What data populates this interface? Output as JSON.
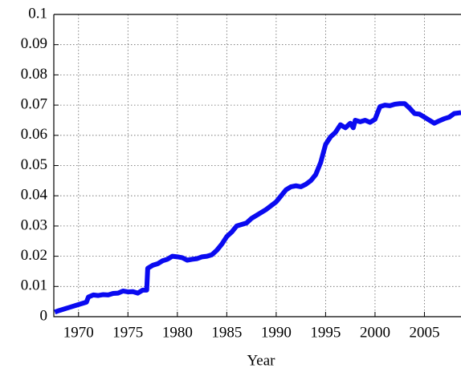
{
  "chart_data": {
    "type": "line",
    "x_label": "Year",
    "x": [
      1967.6,
      1968,
      1969,
      1970,
      1970.8,
      1971,
      1971.5,
      1972,
      1972.5,
      1973,
      1973.5,
      1974,
      1974.5,
      1975,
      1975.5,
      1976,
      1976.5,
      1976.9,
      1977,
      1977.5,
      1978,
      1978.5,
      1979,
      1979.5,
      1980,
      1980.5,
      1981,
      1981.5,
      1982,
      1982.5,
      1983,
      1983.5,
      1984,
      1984.5,
      1985,
      1985.5,
      1986,
      1986.5,
      1987,
      1987.5,
      1988,
      1989,
      1990,
      1990.5,
      1991,
      1991.5,
      1992,
      1992.5,
      1993,
      1993.5,
      1994,
      1994.5,
      1995,
      1995.5,
      1996,
      1996.5,
      1997,
      1997.5,
      1997.8,
      1998,
      1998.5,
      1999,
      1999.5,
      2000,
      2000.5,
      2001,
      2001.5,
      2002,
      2002.5,
      2003,
      2003.5,
      2004,
      2004.5,
      2005,
      2005.5,
      2006,
      2006.5,
      2007,
      2007.5,
      2008,
      2008.7
    ],
    "series": [
      {
        "color": "#0a0af0",
        "values": [
          0.0015,
          0.002,
          0.003,
          0.004,
          0.0048,
          0.0065,
          0.0072,
          0.007,
          0.0073,
          0.0072,
          0.0077,
          0.0078,
          0.0085,
          0.0082,
          0.0083,
          0.0078,
          0.0088,
          0.0088,
          0.016,
          0.017,
          0.0175,
          0.0185,
          0.019,
          0.02,
          0.0198,
          0.0195,
          0.0187,
          0.019,
          0.0192,
          0.0198,
          0.02,
          0.0205,
          0.022,
          0.024,
          0.0265,
          0.028,
          0.03,
          0.0305,
          0.031,
          0.0325,
          0.0335,
          0.0355,
          0.038,
          0.04,
          0.042,
          0.043,
          0.0433,
          0.043,
          0.0438,
          0.045,
          0.047,
          0.051,
          0.057,
          0.0595,
          0.061,
          0.0635,
          0.0625,
          0.064,
          0.0625,
          0.065,
          0.0645,
          0.065,
          0.0643,
          0.0653,
          0.0695,
          0.07,
          0.0698,
          0.0703,
          0.0705,
          0.0705,
          0.069,
          0.0672,
          0.067,
          0.066,
          0.065,
          0.064,
          0.0648,
          0.0655,
          0.066,
          0.0672,
          0.0675
        ]
      }
    ],
    "xlim": [
      1967.5,
      2008.7
    ],
    "ylim": [
      0,
      0.1
    ],
    "xticks": [
      1970,
      1975,
      1980,
      1985,
      1990,
      1995,
      2000,
      2005
    ],
    "yticks": [
      0,
      0.01,
      0.02,
      0.03,
      0.04,
      0.05,
      0.06,
      0.07,
      0.08,
      0.09,
      0.1
    ],
    "grid": true
  }
}
